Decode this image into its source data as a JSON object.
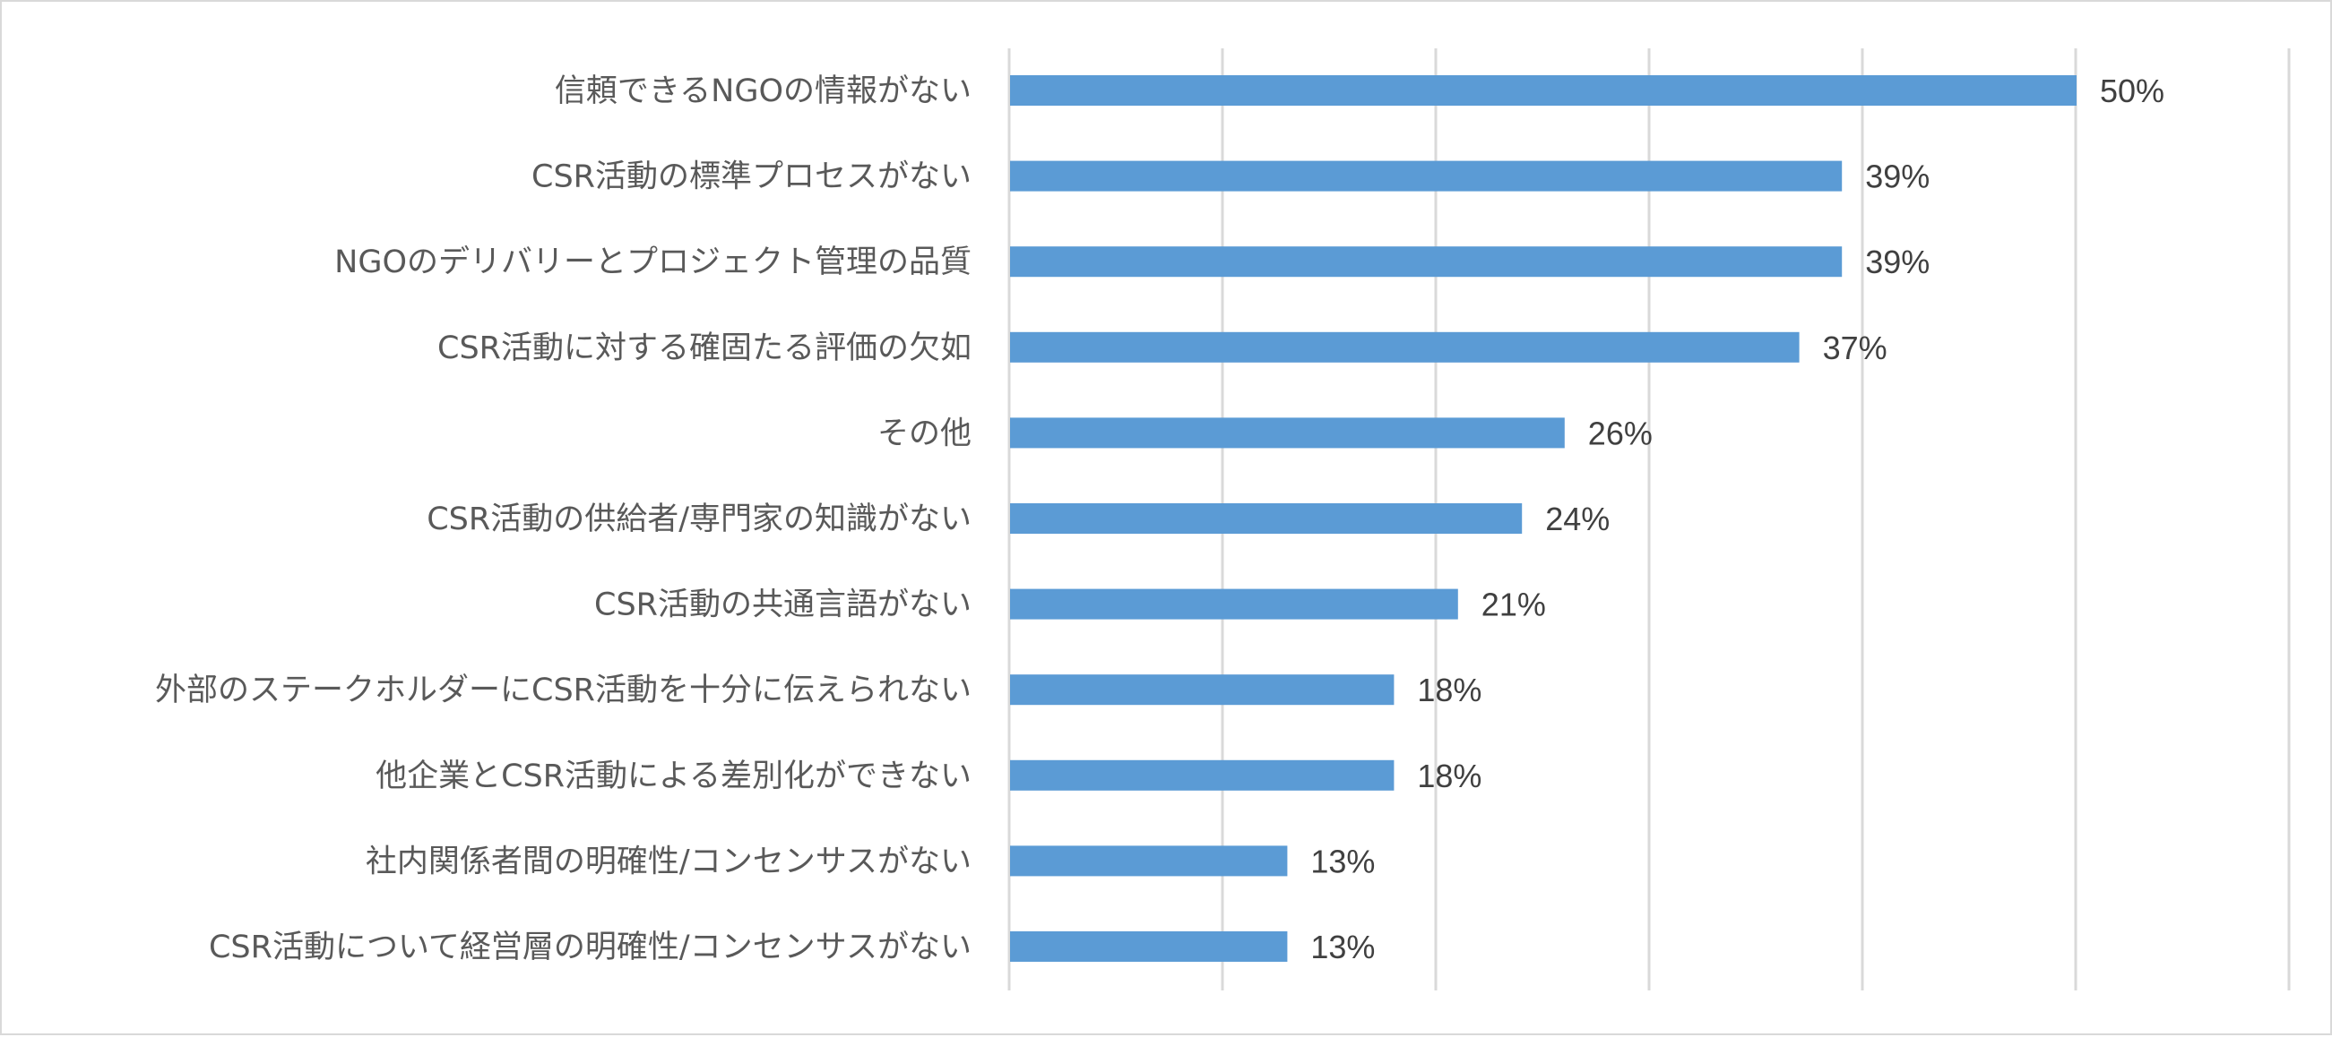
{
  "chart_data": {
    "type": "bar",
    "orientation": "horizontal",
    "categories": [
      "信頼できるNGOの情報がない",
      "CSR活動の標準プロセスがない",
      "NGOのデリバリーとプロジェクト管理の品質",
      "CSR活動に対する確固たる評価の欠如",
      "その他",
      "CSR活動の供給者/専門家の知識がない",
      "CSR活動の共通言語がない",
      "外部のステークホルダーにCSR活動を十分に伝えられない",
      "他企業とCSR活動による差別化ができない",
      "社内関係者間の明確性/コンセンサスがない",
      "CSR活動について経営層の明確性/コンセンサスがない"
    ],
    "values": [
      50,
      39,
      39,
      37,
      26,
      24,
      21,
      18,
      18,
      13,
      13
    ],
    "data_labels": [
      "50%",
      "39%",
      "39%",
      "37%",
      "26%",
      "24%",
      "21%",
      "18%",
      "18%",
      "13%",
      "13%"
    ],
    "unit": "%",
    "xlim": [
      0,
      60
    ],
    "grid_step": 10,
    "grid": true,
    "legend": "none",
    "bar_color": "#5b9bd5",
    "grid_color": "#d9d9d9"
  }
}
